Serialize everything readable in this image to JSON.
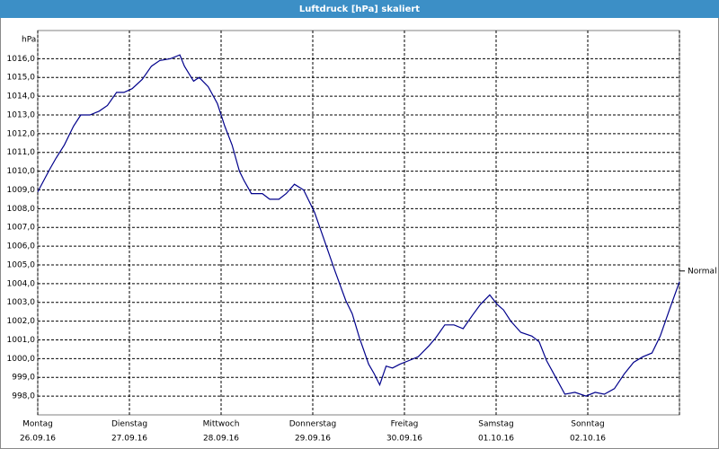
{
  "chart_data": {
    "type": "line",
    "title": "Luftdruck [hPa] skaliert",
    "y_label": "hPa",
    "x": [
      0,
      0.13,
      0.2,
      0.29,
      0.39,
      0.47,
      0.57,
      0.67,
      0.76,
      0.86,
      0.94,
      1.03,
      1.14,
      1.24,
      1.33,
      1.45,
      1.55,
      1.6,
      1.7,
      1.76,
      1.86,
      1.96,
      2.04,
      2.12,
      2.2,
      2.25,
      2.33,
      2.45,
      2.53,
      2.63,
      2.71,
      2.8,
      2.9,
      3.02,
      3.12,
      3.24,
      3.36,
      3.43,
      3.51,
      3.61,
      3.67,
      3.73,
      3.8,
      3.87,
      3.95,
      4.05,
      4.15,
      4.27,
      4.34,
      4.44,
      4.54,
      4.64,
      4.74,
      4.83,
      4.93,
      5.01,
      5.08,
      5.16,
      5.27,
      5.39,
      5.47,
      5.55,
      5.65,
      5.75,
      5.86,
      5.98,
      6.08,
      6.18,
      6.29,
      6.4,
      6.5,
      6.6,
      6.7,
      6.79,
      6.89,
      7.0
    ],
    "series": [
      {
        "color": "#00008b",
        "values": [
          1008.9,
          1010.1,
          1010.7,
          1011.4,
          1012.4,
          1013.0,
          1013.0,
          1013.2,
          1013.5,
          1014.2,
          1014.2,
          1014.4,
          1014.9,
          1015.6,
          1015.9,
          1016.0,
          1016.2,
          1015.6,
          1014.8,
          1015.0,
          1014.5,
          1013.6,
          1012.4,
          1011.4,
          1010.0,
          1009.5,
          1008.8,
          1008.8,
          1008.5,
          1008.5,
          1008.8,
          1009.3,
          1009.0,
          1007.8,
          1006.4,
          1004.7,
          1003.1,
          1002.4,
          1001.1,
          999.7,
          999.2,
          998.6,
          999.6,
          999.5,
          999.7,
          999.9,
          1000.1,
          1000.7,
          1001.1,
          1001.8,
          1001.8,
          1001.6,
          1002.3,
          1002.9,
          1003.4,
          1002.9,
          1002.6,
          1002.0,
          1001.4,
          1001.2,
          1000.9,
          999.9,
          999.0,
          998.1,
          998.2,
          998.0,
          998.2,
          998.1,
          998.4,
          999.2,
          999.8,
          1000.1,
          1000.3,
          1001.2,
          1002.6,
          1004.1
        ]
      }
    ],
    "annotation": "Normal",
    "xlim": [
      0,
      7
    ],
    "xticks": [
      {
        "value": 0,
        "label": "Montag"
      },
      {
        "value": 1,
        "label": "Dienstag"
      },
      {
        "value": 2,
        "label": "Mittwoch"
      },
      {
        "value": 3,
        "label": "Donnerstag"
      },
      {
        "value": 4,
        "label": "Freitag"
      },
      {
        "value": 5,
        "label": "Samstag"
      },
      {
        "value": 6,
        "label": "Sonntag"
      },
      {
        "value": 7,
        "label": ""
      }
    ],
    "xtick_dates": [
      "26.09.16",
      "27.09.16",
      "28.09.16",
      "29.09.16",
      "30.09.16",
      "01.10.16",
      "02.10.16"
    ],
    "ylim": [
      997,
      1017.5
    ],
    "yticks": [
      {
        "value": 998,
        "label": "998,0"
      },
      {
        "value": 999,
        "label": "999,0"
      },
      {
        "value": 1000,
        "label": "1000,0"
      },
      {
        "value": 1001,
        "label": "1001,0"
      },
      {
        "value": 1002,
        "label": "1002,0"
      },
      {
        "value": 1003,
        "label": "1003,0"
      },
      {
        "value": 1004,
        "label": "1004,0"
      },
      {
        "value": 1005,
        "label": "1005,0"
      },
      {
        "value": 1006,
        "label": "1006,0"
      },
      {
        "value": 1007,
        "label": "1007,0"
      },
      {
        "value": 1008,
        "label": "1008,0"
      },
      {
        "value": 1009,
        "label": "1009,0"
      },
      {
        "value": 1010,
        "label": "1010,0"
      },
      {
        "value": 1011,
        "label": "1011,0"
      },
      {
        "value": 1012,
        "label": "1012,0"
      },
      {
        "value": 1013,
        "label": "1013,0"
      },
      {
        "value": 1014,
        "label": "1014,0"
      },
      {
        "value": 1015,
        "label": "1015,0"
      },
      {
        "value": 1016,
        "label": "1016,0"
      }
    ],
    "grid": true
  }
}
